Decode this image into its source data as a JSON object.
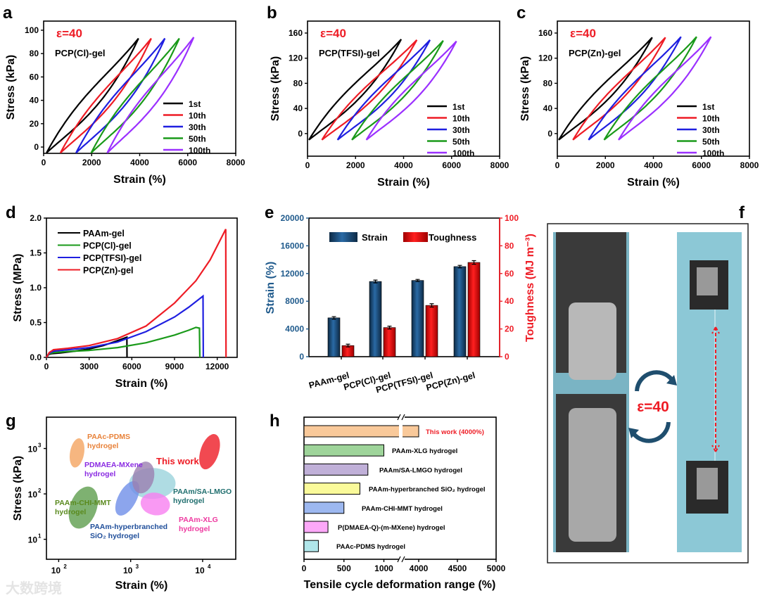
{
  "panels": {
    "a": "a",
    "b": "b",
    "c": "c",
    "d": "d",
    "e": "e",
    "f": "f",
    "g": "g",
    "h": "h"
  },
  "watermark": "大数跨境",
  "chart_data": [
    {
      "id": "a",
      "type": "line",
      "annotation": "ε=40",
      "sample": "PCP(Cl)-gel",
      "xlabel": "Strain (%)",
      "ylabel": "Stress (kPa)",
      "xlim": [
        0,
        8000
      ],
      "ylim": [
        -5.4,
        107.8
      ],
      "xticks": [
        0,
        2000,
        4000,
        6000,
        8000
      ],
      "yticks": [
        0,
        20,
        40,
        60,
        80,
        100
      ],
      "legend_position": "bottom-right",
      "series": [
        {
          "name": "1st",
          "color": "#000000",
          "start_strain": 120,
          "max_strain": 3950,
          "peak_stress": 93,
          "min_stress": -5
        },
        {
          "name": "10th",
          "color": "#ee1c25",
          "start_strain": 700,
          "max_strain": 4480,
          "peak_stress": 93,
          "min_stress": -5
        },
        {
          "name": "30th",
          "color": "#1f1fe0",
          "start_strain": 1350,
          "max_strain": 5050,
          "peak_stress": 93,
          "min_stress": -5
        },
        {
          "name": "50th",
          "color": "#1a9a1a",
          "start_strain": 1980,
          "max_strain": 5650,
          "peak_stress": 93,
          "min_stress": -5
        },
        {
          "name": "100th",
          "color": "#9b30ff",
          "start_strain": 2650,
          "max_strain": 6250,
          "peak_stress": 94,
          "min_stress": -5
        }
      ]
    },
    {
      "id": "b",
      "type": "line",
      "annotation": "ε=40",
      "sample": "PCP(TFSI)-gel",
      "xlabel": "Strain (%)",
      "ylabel": "Stress (kPa)",
      "xlim": [
        0,
        8000
      ],
      "ylim": [
        -36,
        179
      ],
      "xticks": [
        0,
        2000,
        4000,
        6000,
        8000
      ],
      "yticks": [
        0,
        40,
        80,
        120,
        160
      ],
      "legend_position": "bottom-right",
      "series": [
        {
          "name": "1st",
          "color": "#000000",
          "start_strain": 60,
          "max_strain": 3900,
          "peak_stress": 150,
          "min_stress": -10
        },
        {
          "name": "10th",
          "color": "#ee1c25",
          "start_strain": 600,
          "max_strain": 4550,
          "peak_stress": 149,
          "min_stress": -10
        },
        {
          "name": "30th",
          "color": "#1f1fe0",
          "start_strain": 1250,
          "max_strain": 5100,
          "peak_stress": 149,
          "min_stress": -10
        },
        {
          "name": "50th",
          "color": "#1a9a1a",
          "start_strain": 1850,
          "max_strain": 5650,
          "peak_stress": 148,
          "min_stress": -10
        },
        {
          "name": "100th",
          "color": "#9b30ff",
          "start_strain": 2450,
          "max_strain": 6200,
          "peak_stress": 147,
          "min_stress": -10
        }
      ]
    },
    {
      "id": "c",
      "type": "line",
      "annotation": "ε=40",
      "sample": "PCP(Zn)-gel",
      "xlabel": "Strain (%)",
      "ylabel": "Stress (kPa)",
      "xlim": [
        0,
        8000
      ],
      "ylim": [
        -36,
        179
      ],
      "xticks": [
        0,
        2000,
        4000,
        6000,
        8000
      ],
      "yticks": [
        0,
        40,
        80,
        120,
        160
      ],
      "legend_position": "bottom-right",
      "series": [
        {
          "name": "1st",
          "color": "#000000",
          "start_strain": 60,
          "max_strain": 3950,
          "peak_stress": 153,
          "min_stress": -10
        },
        {
          "name": "10th",
          "color": "#ee1c25",
          "start_strain": 650,
          "max_strain": 4500,
          "peak_stress": 153,
          "min_stress": -10
        },
        {
          "name": "30th",
          "color": "#1f1fe0",
          "start_strain": 1300,
          "max_strain": 5150,
          "peak_stress": 154,
          "min_stress": -10
        },
        {
          "name": "50th",
          "color": "#1a9a1a",
          "start_strain": 1950,
          "max_strain": 5800,
          "peak_stress": 154,
          "min_stress": -10
        },
        {
          "name": "100th",
          "color": "#9b30ff",
          "start_strain": 2550,
          "max_strain": 6400,
          "peak_stress": 154,
          "min_stress": -10
        }
      ]
    },
    {
      "id": "d",
      "type": "line",
      "xlabel": "Strain (%)",
      "ylabel": "Stress (MPa)",
      "xlim": [
        0,
        13400
      ],
      "ylim": [
        0,
        2.0
      ],
      "xticks": [
        0,
        3000,
        6000,
        9000,
        12000
      ],
      "yticks": [
        0,
        0.5,
        1.0,
        1.5,
        2.0
      ],
      "ytick_labels": [
        "0.0",
        "0.5",
        "1.0",
        "1.5",
        "2.0"
      ],
      "legend_position": "top-left",
      "series": [
        {
          "name": "PAAm-gel",
          "color": "#000000",
          "points": [
            [
              0,
              0
            ],
            [
              150,
              0.04
            ],
            [
              400,
              0.055
            ],
            [
              1000,
              0.065
            ],
            [
              2000,
              0.09
            ],
            [
              3000,
              0.12
            ],
            [
              4000,
              0.17
            ],
            [
              5000,
              0.24
            ],
            [
              5650,
              0.29
            ],
            [
              5660,
              0
            ]
          ]
        },
        {
          "name": "PCP(Cl)-gel",
          "color": "#1a9a1a",
          "points": [
            [
              0,
              0
            ],
            [
              200,
              0.05
            ],
            [
              500,
              0.07
            ],
            [
              1500,
              0.085
            ],
            [
              3000,
              0.1
            ],
            [
              5000,
              0.14
            ],
            [
              7000,
              0.21
            ],
            [
              9000,
              0.32
            ],
            [
              10000,
              0.39
            ],
            [
              10500,
              0.43
            ],
            [
              10750,
              0.42
            ],
            [
              10780,
              0
            ]
          ]
        },
        {
          "name": "PCP(TFSI)-gel",
          "color": "#1f1fe0",
          "points": [
            [
              0,
              0
            ],
            [
              200,
              0.06
            ],
            [
              500,
              0.09
            ],
            [
              1500,
              0.11
            ],
            [
              3000,
              0.14
            ],
            [
              5000,
              0.22
            ],
            [
              7000,
              0.37
            ],
            [
              9000,
              0.58
            ],
            [
              10000,
              0.72
            ],
            [
              11000,
              0.88
            ],
            [
              11020,
              0
            ]
          ]
        },
        {
          "name": "PCP(Zn)-gel",
          "color": "#ee1c25",
          "points": [
            [
              0,
              0
            ],
            [
              200,
              0.07
            ],
            [
              500,
              0.11
            ],
            [
              1500,
              0.13
            ],
            [
              3000,
              0.17
            ],
            [
              5000,
              0.27
            ],
            [
              7000,
              0.45
            ],
            [
              9000,
              0.78
            ],
            [
              10500,
              1.1
            ],
            [
              11500,
              1.4
            ],
            [
              12600,
              1.84
            ],
            [
              12620,
              0
            ]
          ]
        }
      ]
    },
    {
      "id": "e",
      "type": "bar",
      "categories": [
        "PAAm-gel",
        "PCP(Cl)-gel",
        "PCP(TFSI)-gel",
        "PCP(Zn)-gel"
      ],
      "ylabel": "Strain (%)",
      "ylabel_right": "Toughness (MJ m⁻³)",
      "ylim": [
        0,
        20000
      ],
      "ylim_right": [
        0,
        100
      ],
      "yticks": [
        0,
        4000,
        8000,
        12000,
        16000,
        20000
      ],
      "yticks_right": [
        0,
        20,
        40,
        60,
        80,
        100
      ],
      "legend_position": "top",
      "series": [
        {
          "name": "Strain",
          "axis": "left",
          "color": "#1f5a8c",
          "values": [
            5600,
            10850,
            11000,
            13000
          ],
          "errors": [
            180,
            200,
            150,
            180
          ]
        },
        {
          "name": "Toughness",
          "axis": "right",
          "color": "#ee1c25",
          "values": [
            8,
            21,
            37,
            68
          ],
          "errors": [
            1,
            1,
            1.2,
            1.3
          ]
        }
      ]
    },
    {
      "id": "g",
      "type": "scatter",
      "xscale": "log",
      "yscale": "log",
      "xlabel": "Strain (%)",
      "ylabel": "Stress (kPa)",
      "xlim_log10": [
        1.83,
        4.46
      ],
      "ylim_log10": [
        0.56,
        3.69
      ],
      "xticks_log10": [
        2,
        3,
        4
      ],
      "yticks_log10": [
        1,
        2,
        3
      ],
      "regions": [
        {
          "name": "PAAc-PDMS hydrogel",
          "label_lines": [
            "PAAc-PDMS",
            "hydrogel"
          ],
          "color": "#f4a460",
          "label_color": "#e8823a",
          "strain": 180,
          "stress": 800
        },
        {
          "name": "This work",
          "label_lines": [
            "This work"
          ],
          "color": "#ee1c25",
          "label_color": "#ee1c25",
          "strain": 12500,
          "stress": 850
        },
        {
          "name": "PAAm/SA-LMGO hydrogel",
          "label_lines": [
            "PAAm/SA-LMGO",
            "hydrogel"
          ],
          "color": "#9bd3dc",
          "label_color": "#1f6e6e",
          "strain": 2000,
          "stress": 170
        },
        {
          "name": "PAAm-XLG hydrogel",
          "label_lines": [
            "PAAm-XLG",
            "hydrogel"
          ],
          "color": "#f77ff0",
          "label_color": "#ee3aa0",
          "strain": 2200,
          "stress": 60
        },
        {
          "name": "PAAm-hyperbranched SiO2 hydrogel",
          "label_lines": [
            "PAAm-hyperbranched",
            "SiO₂ hydrogel"
          ],
          "color": "#6f8fe8",
          "label_color": "#1f4e9a",
          "strain": 900,
          "stress": 80
        },
        {
          "name": "PAAm-CHI-MMT hydrogel",
          "label_lines": [
            "PAAm-CHI-MMT",
            "hydrogel"
          ],
          "color": "#5e9e4e",
          "label_color": "#5a8a1e",
          "strain": 220,
          "stress": 50
        },
        {
          "name": "PDMAEA-MXene hydrogel",
          "label_lines": [
            "PDMAEA-MXene",
            "hydrogel"
          ],
          "color": "#9b7fb0",
          "label_color": "#8a2be2",
          "strain": 1500,
          "stress": 230
        }
      ]
    },
    {
      "id": "h",
      "type": "bar",
      "orientation": "horizontal",
      "xlabel": "Tensile cycle deformation range (%)",
      "xticks": [
        0,
        500,
        1000,
        4000,
        4500,
        5000
      ],
      "axis_break": [
        1250,
        3800
      ],
      "categories": [
        "This work (4000%)",
        "PAAm-XLG hydrogel",
        "PAAm/SA-LMGO hydrogel",
        "PAAm-hyperbranched SiO₂ hydrogel",
        "PAAm-CHI-MMT hydrogel",
        "P(DMAEA-Q)-(m-MXene) hydrogel",
        "PAAc-PDMS hydrogel"
      ],
      "values": [
        4000,
        1000,
        800,
        700,
        500,
        300,
        180
      ],
      "colors": [
        "#f9c99a",
        "#9ed49a",
        "#c0b0d8",
        "#fafa9a",
        "#9db8f0",
        "#fca8f8",
        "#b0e6ea"
      ],
      "highlight_color": "#ee1c25"
    }
  ],
  "photo_f": {
    "annotation": "ε=40",
    "arrow_color": "#ee1c25",
    "cycle_color": "#1f4e6e"
  }
}
